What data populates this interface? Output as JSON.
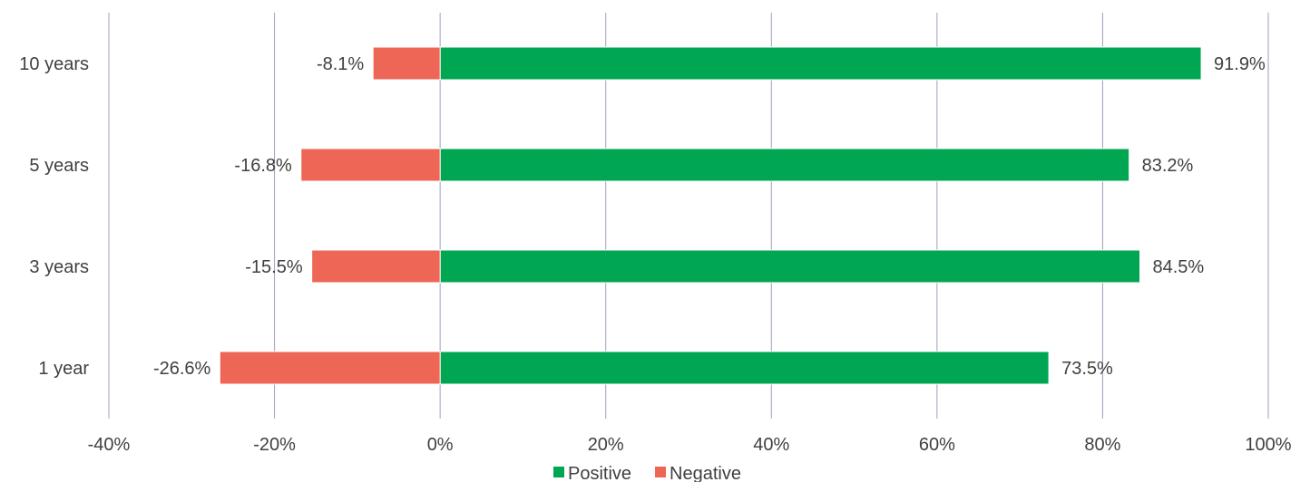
{
  "chart_data": {
    "type": "bar",
    "orientation": "horizontal",
    "stacked": true,
    "title": "",
    "xlabel": "",
    "ylabel": "",
    "categories": [
      "10 years",
      "5 years",
      "3 years",
      "1 year"
    ],
    "series": [
      {
        "name": "Positive",
        "values": [
          91.9,
          83.2,
          84.5,
          73.5
        ],
        "labels": [
          "91.9%",
          "83.2%",
          "84.5%",
          "73.5%"
        ],
        "color": "#00A651"
      },
      {
        "name": "Negative",
        "values": [
          -8.1,
          -16.8,
          -15.5,
          -26.6
        ],
        "labels": [
          "-8.1%",
          "-16.8%",
          "-15.5%",
          "-26.6%"
        ],
        "color": "#EE6655"
      }
    ],
    "xlim": [
      -40,
      100
    ],
    "xticks": [
      -40,
      -20,
      0,
      20,
      40,
      60,
      80,
      100
    ],
    "xtick_labels": [
      "-40%",
      "-20%",
      "0%",
      "20%",
      "40%",
      "60%",
      "80%",
      "100%"
    ],
    "grid": true,
    "legend_position": "bottom"
  },
  "colors": {
    "grid": "#A0A0B8",
    "text": "#404040"
  }
}
